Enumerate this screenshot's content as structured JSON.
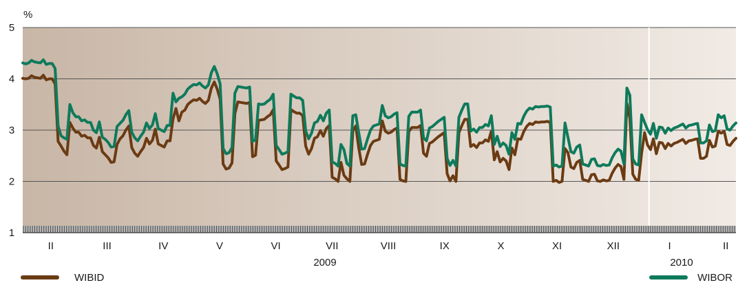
{
  "chart_data": {
    "type": "line",
    "unit_label": "%",
    "ylim": [
      1,
      5
    ],
    "yticks": [
      1,
      2,
      3,
      4,
      5
    ],
    "grid_y": [
      2,
      3,
      4
    ],
    "grid": "horizontal",
    "legend_placement": "bottom",
    "month_labels": [
      "II",
      "III",
      "IV",
      "V",
      "VI",
      "VII",
      "VIII",
      "IX",
      "X",
      "XI",
      "XII",
      "I",
      "II"
    ],
    "year_labels": [
      "2009",
      "2010"
    ],
    "year_divider_after_month": "XII",
    "colors": {
      "wibid": "#6b3b13",
      "wibor": "#0e7a5b",
      "plot_left": "#c8b6a6",
      "plot_right": "#f1ebe5",
      "grid": "#555555"
    },
    "series": [
      {
        "name": "WIBID",
        "key": "wibid",
        "values": [
          4.01,
          4.0,
          4.01,
          4.06,
          4.03,
          4.02,
          4.01,
          4.07,
          3.98,
          4.0,
          4.0,
          3.9,
          2.78,
          2.69,
          2.59,
          2.52,
          3.15,
          3.04,
          2.96,
          2.96,
          2.88,
          2.9,
          2.85,
          2.85,
          2.7,
          2.65,
          2.86,
          2.58,
          2.52,
          2.46,
          2.37,
          2.38,
          2.72,
          2.83,
          2.89,
          3.0,
          3.08,
          2.66,
          2.55,
          2.49,
          2.58,
          2.66,
          2.84,
          2.73,
          2.8,
          3.02,
          2.73,
          2.7,
          2.67,
          2.79,
          2.79,
          3.22,
          3.42,
          3.18,
          3.35,
          3.39,
          3.5,
          3.55,
          3.59,
          3.58,
          3.62,
          3.56,
          3.52,
          3.58,
          3.82,
          3.94,
          3.8,
          3.6,
          2.34,
          2.24,
          2.26,
          2.36,
          3.32,
          3.55,
          3.54,
          3.53,
          3.52,
          3.54,
          2.48,
          2.51,
          3.19,
          3.2,
          3.21,
          3.26,
          3.3,
          3.4,
          2.4,
          2.32,
          2.23,
          2.25,
          2.28,
          3.4,
          3.36,
          3.33,
          3.33,
          3.28,
          2.69,
          2.53,
          2.64,
          2.84,
          2.87,
          2.99,
          2.88,
          3.03,
          3.09,
          2.08,
          2.05,
          2.0,
          2.37,
          2.12,
          2.05,
          2.0,
          2.98,
          3.08,
          2.66,
          2.33,
          2.34,
          2.53,
          2.7,
          2.78,
          2.8,
          2.82,
          3.18,
          2.98,
          2.94,
          2.96,
          3.01,
          3.04,
          2.04,
          2.01,
          2.0,
          2.97,
          3.05,
          3.05,
          3.05,
          3.09,
          2.55,
          2.49,
          2.74,
          2.77,
          2.82,
          2.87,
          2.91,
          2.95,
          2.15,
          2.01,
          2.11,
          2.0,
          2.95,
          3.09,
          3.21,
          3.21,
          2.68,
          2.72,
          2.66,
          2.75,
          2.75,
          2.81,
          2.78,
          2.98,
          2.42,
          2.58,
          2.38,
          2.45,
          2.4,
          2.23,
          2.65,
          2.52,
          2.83,
          2.82,
          2.97,
          3.07,
          3.13,
          3.11,
          3.16,
          3.15,
          3.16,
          3.16,
          3.17,
          3.15,
          2.0,
          2.02,
          1.98,
          2.0,
          2.64,
          2.56,
          2.28,
          2.25,
          2.37,
          2.41,
          2.04,
          2.02,
          2.0,
          2.13,
          2.14,
          2.01,
          2.0,
          2.03,
          2.01,
          2.02,
          2.16,
          2.26,
          2.33,
          2.29,
          2.04,
          3.52,
          3.23,
          2.14,
          2.04,
          2.02,
          2.55,
          2.95,
          2.71,
          2.62,
          2.83,
          2.54,
          2.76,
          2.75,
          2.64,
          2.74,
          2.69,
          2.74,
          2.76,
          2.79,
          2.82,
          2.74,
          2.79,
          2.8,
          2.82,
          2.83,
          2.45,
          2.45,
          2.49,
          2.8,
          2.67,
          2.69,
          2.98,
          2.94,
          2.98,
          2.72,
          2.7,
          2.78,
          2.84
        ]
      },
      {
        "name": "WIBOR",
        "key": "wibor",
        "values": [
          4.31,
          4.29,
          4.31,
          4.36,
          4.33,
          4.32,
          4.31,
          4.37,
          4.28,
          4.3,
          4.3,
          4.2,
          3.08,
          2.89,
          2.85,
          2.82,
          3.5,
          3.34,
          3.26,
          3.26,
          3.18,
          3.2,
          3.15,
          3.15,
          3.0,
          2.95,
          3.16,
          2.86,
          2.82,
          2.76,
          2.67,
          2.68,
          3.07,
          3.13,
          3.19,
          3.3,
          3.38,
          2.96,
          2.85,
          2.79,
          2.88,
          2.96,
          3.14,
          3.03,
          3.1,
          3.32,
          3.03,
          3.0,
          2.97,
          3.09,
          3.09,
          3.72,
          3.55,
          3.62,
          3.65,
          3.7,
          3.8,
          3.85,
          3.89,
          3.88,
          3.92,
          3.86,
          3.82,
          3.88,
          4.12,
          4.24,
          4.1,
          3.9,
          2.64,
          2.54,
          2.56,
          2.66,
          3.72,
          3.85,
          3.84,
          3.83,
          3.82,
          3.84,
          2.78,
          2.81,
          3.51,
          3.5,
          3.51,
          3.56,
          3.6,
          3.7,
          2.7,
          2.62,
          2.53,
          2.55,
          2.58,
          3.7,
          3.66,
          3.63,
          3.63,
          3.58,
          2.99,
          2.83,
          2.94,
          3.14,
          3.17,
          3.29,
          3.18,
          3.33,
          3.39,
          2.38,
          2.35,
          2.3,
          2.72,
          2.62,
          2.35,
          2.3,
          3.28,
          3.3,
          2.96,
          2.63,
          2.64,
          2.83,
          3.0,
          3.08,
          3.1,
          3.12,
          3.48,
          3.28,
          3.24,
          3.26,
          3.31,
          3.34,
          2.34,
          2.31,
          2.3,
          3.27,
          3.35,
          3.35,
          3.35,
          3.39,
          2.85,
          2.79,
          3.04,
          3.07,
          3.12,
          3.17,
          3.21,
          3.25,
          2.45,
          2.31,
          2.41,
          2.3,
          3.25,
          3.39,
          3.51,
          3.51,
          2.98,
          3.02,
          2.96,
          3.05,
          3.05,
          3.11,
          3.08,
          3.28,
          2.72,
          2.88,
          2.68,
          2.75,
          2.7,
          2.53,
          2.95,
          2.82,
          3.13,
          3.12,
          3.27,
          3.37,
          3.43,
          3.41,
          3.46,
          3.45,
          3.46,
          3.46,
          3.47,
          3.45,
          2.3,
          2.32,
          2.28,
          2.3,
          3.14,
          2.86,
          2.58,
          2.55,
          2.67,
          2.71,
          2.34,
          2.32,
          2.3,
          2.43,
          2.44,
          2.31,
          2.3,
          2.33,
          2.31,
          2.32,
          2.46,
          2.56,
          2.63,
          2.59,
          2.34,
          3.82,
          3.68,
          2.44,
          2.34,
          2.32,
          3.3,
          3.15,
          3.01,
          2.92,
          3.13,
          2.84,
          3.06,
          3.05,
          2.94,
          3.04,
          2.99,
          3.04,
          3.06,
          3.09,
          3.12,
          3.04,
          3.09,
          3.1,
          3.12,
          3.13,
          2.75,
          2.75,
          2.79,
          3.1,
          2.97,
          2.99,
          3.3,
          3.24,
          3.28,
          3.02,
          3.0,
          3.08,
          3.14
        ]
      }
    ]
  }
}
